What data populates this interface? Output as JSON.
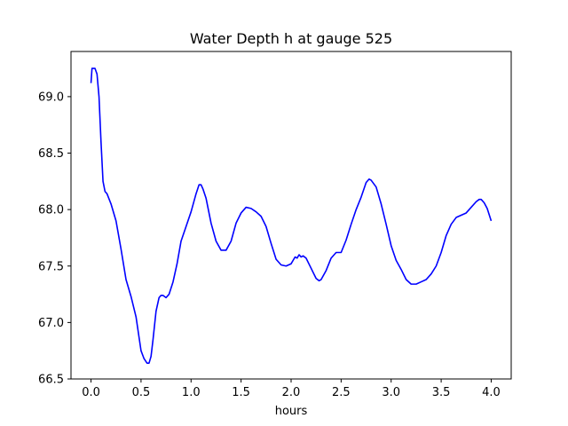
{
  "chart_data": {
    "type": "line",
    "title": "Water Depth h at gauge 525",
    "xlabel": "hours",
    "ylabel": "",
    "xlim": [
      -0.2,
      4.2
    ],
    "ylim": [
      66.5,
      69.4
    ],
    "xticks": [
      0.0,
      0.5,
      1.0,
      1.5,
      2.0,
      2.5,
      3.0,
      3.5,
      4.0
    ],
    "xtick_labels": [
      "0.0",
      "0.5",
      "1.0",
      "1.5",
      "2.0",
      "2.5",
      "3.0",
      "3.5",
      "4.0"
    ],
    "yticks": [
      66.5,
      67.0,
      67.5,
      68.0,
      68.5,
      69.0
    ],
    "ytick_labels": [
      "66.5",
      "67.0",
      "67.5",
      "68.0",
      "68.5",
      "69.0"
    ],
    "grid": false,
    "legend": "none",
    "series": [
      {
        "name": "h",
        "color": "#0000ff",
        "x": [
          0.0,
          0.01,
          0.04,
          0.06,
          0.08,
          0.1,
          0.12,
          0.14,
          0.16,
          0.2,
          0.25,
          0.3,
          0.35,
          0.4,
          0.45,
          0.5,
          0.53,
          0.56,
          0.58,
          0.6,
          0.62,
          0.65,
          0.68,
          0.7,
          0.72,
          0.75,
          0.78,
          0.82,
          0.86,
          0.9,
          0.95,
          1.0,
          1.05,
          1.08,
          1.1,
          1.12,
          1.15,
          1.2,
          1.25,
          1.3,
          1.35,
          1.4,
          1.45,
          1.5,
          1.55,
          1.6,
          1.65,
          1.7,
          1.75,
          1.8,
          1.85,
          1.9,
          1.95,
          2.0,
          2.02,
          2.04,
          2.06,
          2.08,
          2.1,
          2.12,
          2.15,
          2.2,
          2.25,
          2.28,
          2.3,
          2.35,
          2.4,
          2.45,
          2.5,
          2.55,
          2.6,
          2.65,
          2.7,
          2.75,
          2.78,
          2.8,
          2.85,
          2.9,
          2.95,
          3.0,
          3.05,
          3.1,
          3.15,
          3.2,
          3.25,
          3.3,
          3.35,
          3.4,
          3.45,
          3.5,
          3.55,
          3.6,
          3.65,
          3.7,
          3.75,
          3.8,
          3.85,
          3.88,
          3.9,
          3.93,
          3.96,
          4.0
        ],
        "y": [
          69.12,
          69.25,
          69.25,
          69.2,
          69.0,
          68.6,
          68.25,
          68.16,
          68.14,
          68.05,
          67.9,
          67.65,
          67.38,
          67.23,
          67.05,
          66.75,
          66.68,
          66.64,
          66.64,
          66.7,
          66.85,
          67.1,
          67.22,
          67.24,
          67.24,
          67.22,
          67.25,
          67.36,
          67.52,
          67.72,
          67.85,
          67.98,
          68.14,
          68.22,
          68.22,
          68.18,
          68.1,
          67.88,
          67.72,
          67.64,
          67.64,
          67.72,
          67.88,
          67.97,
          68.02,
          68.01,
          67.98,
          67.94,
          67.85,
          67.7,
          67.56,
          67.51,
          67.5,
          67.52,
          67.55,
          67.58,
          67.57,
          67.6,
          67.58,
          67.59,
          67.57,
          67.48,
          67.39,
          67.37,
          67.38,
          67.46,
          67.57,
          67.62,
          67.62,
          67.73,
          67.87,
          68.0,
          68.11,
          68.24,
          68.27,
          68.26,
          68.2,
          68.05,
          67.87,
          67.68,
          67.55,
          67.47,
          67.38,
          67.34,
          67.34,
          67.36,
          67.38,
          67.43,
          67.5,
          67.62,
          67.77,
          67.87,
          67.93,
          67.95,
          67.97,
          68.02,
          68.07,
          68.09,
          68.09,
          68.06,
          68.01,
          67.9
        ]
      }
    ]
  }
}
